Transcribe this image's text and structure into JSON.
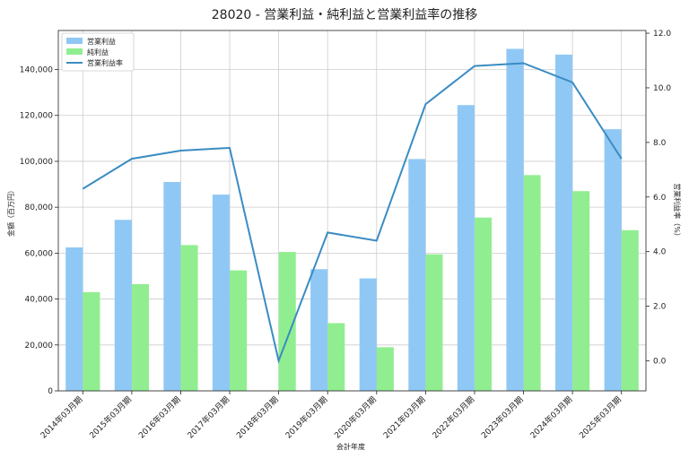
{
  "chart_data": {
    "type": "bar",
    "title": "28020 - 営業利益・純利益と営業利益率の推移",
    "xlabel": "会計年度",
    "ylabel": "金額（百万円）",
    "ylabel2": "営業利益率（%）",
    "categories": [
      "2014年03月期",
      "2015年03月期",
      "2016年03月期",
      "2017年03月期",
      "2018年03月期",
      "2019年03月期",
      "2020年03月期",
      "2021年03月期",
      "2022年03月期",
      "2023年03月期",
      "2024年03月期",
      "2025年03月期"
    ],
    "series": [
      {
        "name": "営業利益",
        "type": "bar",
        "axis": "left",
        "color": "#90c8f5",
        "values": [
          62500,
          74500,
          91000,
          85500,
          0,
          53000,
          49000,
          101000,
          124500,
          149000,
          146500,
          114000
        ]
      },
      {
        "name": "純利益",
        "type": "bar",
        "axis": "left",
        "color": "#90ee90",
        "values": [
          43000,
          46500,
          63500,
          52500,
          60500,
          29500,
          19000,
          59500,
          75500,
          94000,
          87000,
          70000
        ]
      },
      {
        "name": "営業利益率",
        "type": "line",
        "axis": "right",
        "color": "#3a8cc3",
        "values": [
          6.3,
          7.4,
          7.7,
          7.8,
          0.0,
          4.7,
          4.4,
          9.4,
          10.8,
          10.9,
          10.2,
          7.4
        ]
      }
    ],
    "ylim": [
      0,
      157000
    ],
    "yticks": [
      0,
      20000,
      40000,
      60000,
      80000,
      100000,
      120000,
      140000
    ],
    "ytick_labels": [
      "0",
      "20,000",
      "40,000",
      "60,000",
      "80,000",
      "100,000",
      "120,000",
      "140,000"
    ],
    "y2lim": [
      -1.1,
      12.1
    ],
    "y2ticks": [
      0,
      2,
      4,
      6,
      8,
      10,
      12
    ],
    "y2tick_labels": [
      "0.0",
      "2.0",
      "4.0",
      "6.0",
      "8.0",
      "10.0",
      "12.0"
    ],
    "grid": true,
    "legend_position": "top-left"
  }
}
